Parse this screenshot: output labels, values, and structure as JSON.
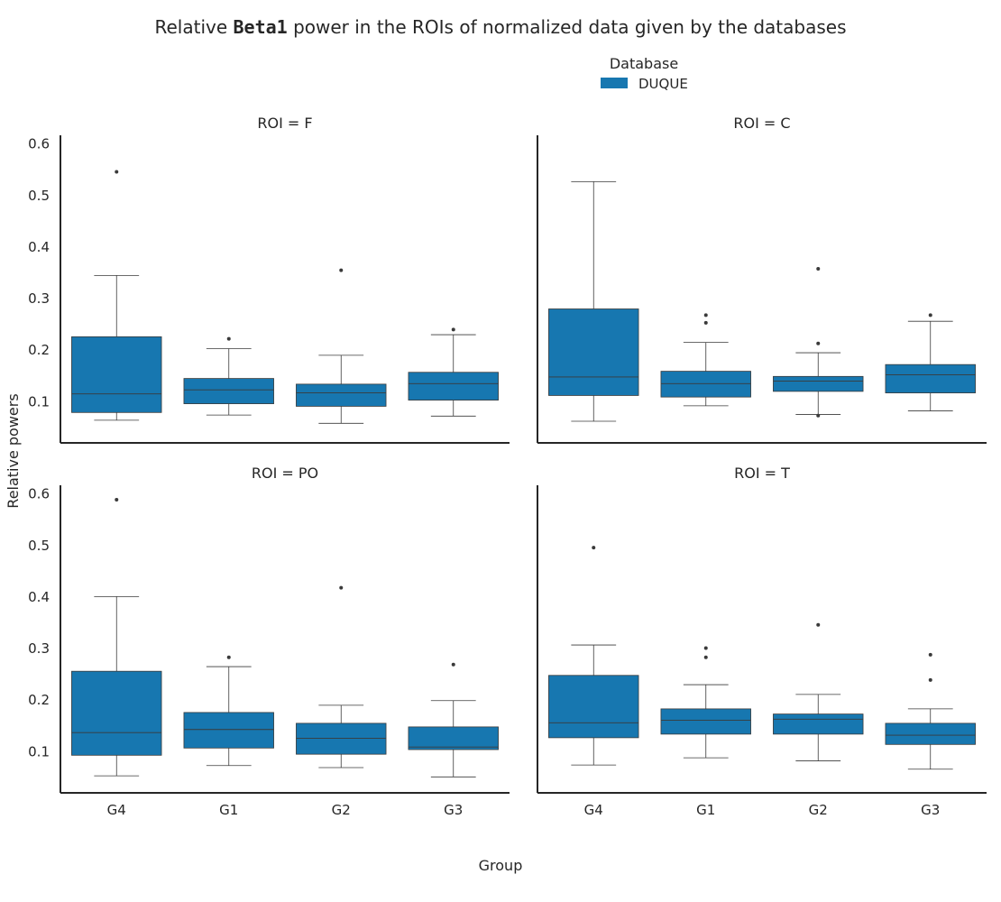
{
  "title_prefix": "Relative ",
  "title_bold": "Beta1",
  "title_suffix": " power in the ROIs of normalized data given by the databases",
  "legend": {
    "title": "Database",
    "entries": [
      {
        "label": "DUQUE",
        "color": "#1777b0"
      }
    ],
    "placement": "top-center"
  },
  "xlabel": "Group",
  "ylabel": "Relative powers",
  "colors": {
    "box": "#1777b0",
    "line": "#3a3a3a",
    "axis": "#262626"
  },
  "chart_data": [
    {
      "type": "boxplot",
      "title": "ROI = F",
      "categories": [
        "G4",
        "G1",
        "G2",
        "G3"
      ],
      "ylim": [
        0.02,
        0.617
      ],
      "yticks": [
        0.1,
        0.2,
        0.3,
        0.4,
        0.5,
        0.6
      ],
      "ytick_labels": [
        "0.1",
        "0.2",
        "0.3",
        "0.4",
        "0.5",
        "0.6"
      ],
      "grid": false,
      "series": [
        {
          "name": "DUQUE",
          "boxes": [
            {
              "whislo": 0.064,
              "q1": 0.079,
              "med": 0.115,
              "q3": 0.226,
              "whishi": 0.345,
              "fliers": [
                0.546
              ]
            },
            {
              "whislo": 0.074,
              "q1": 0.096,
              "med": 0.123,
              "q3": 0.145,
              "whishi": 0.203,
              "fliers": [
                0.222
              ]
            },
            {
              "whislo": 0.058,
              "q1": 0.091,
              "med": 0.117,
              "q3": 0.134,
              "whishi": 0.19,
              "fliers": [
                0.355
              ]
            },
            {
              "whislo": 0.072,
              "q1": 0.103,
              "med": 0.135,
              "q3": 0.157,
              "whishi": 0.23,
              "fliers": [
                0.24
              ]
            }
          ]
        }
      ]
    },
    {
      "type": "boxplot",
      "title": "ROI = C",
      "categories": [
        "G4",
        "G1",
        "G2",
        "G3"
      ],
      "ylim": [
        0.02,
        0.617
      ],
      "yticks": [
        0.1,
        0.2,
        0.3,
        0.4,
        0.5,
        0.6
      ],
      "ytick_labels": [],
      "grid": false,
      "series": [
        {
          "name": "DUQUE",
          "boxes": [
            {
              "whislo": 0.062,
              "q1": 0.112,
              "med": 0.148,
              "q3": 0.28,
              "whishi": 0.527,
              "fliers": []
            },
            {
              "whislo": 0.092,
              "q1": 0.109,
              "med": 0.135,
              "q3": 0.159,
              "whishi": 0.215,
              "fliers": [
                0.253,
                0.268
              ]
            },
            {
              "whislo": 0.075,
              "q1": 0.12,
              "med": 0.14,
              "q3": 0.149,
              "whishi": 0.195,
              "fliers": [
                0.073,
                0.213,
                0.358
              ]
            },
            {
              "whislo": 0.082,
              "q1": 0.117,
              "med": 0.152,
              "q3": 0.172,
              "whishi": 0.256,
              "fliers": [
                0.268
              ]
            }
          ]
        }
      ]
    },
    {
      "type": "boxplot",
      "title": "ROI = PO",
      "categories": [
        "G4",
        "G1",
        "G2",
        "G3"
      ],
      "ylim": [
        0.02,
        0.617
      ],
      "yticks": [
        0.1,
        0.2,
        0.3,
        0.4,
        0.5,
        0.6
      ],
      "ytick_labels": [
        "0.1",
        "0.2",
        "0.3",
        "0.4",
        "0.5",
        "0.6"
      ],
      "grid": false,
      "series": [
        {
          "name": "DUQUE",
          "boxes": [
            {
              "whislo": 0.053,
              "q1": 0.093,
              "med": 0.137,
              "q3": 0.256,
              "whishi": 0.401,
              "fliers": [
                0.589
              ]
            },
            {
              "whislo": 0.073,
              "q1": 0.107,
              "med": 0.143,
              "q3": 0.176,
              "whishi": 0.265,
              "fliers": [
                0.283
              ]
            },
            {
              "whislo": 0.069,
              "q1": 0.095,
              "med": 0.126,
              "q3": 0.155,
              "whishi": 0.19,
              "fliers": [
                0.418
              ]
            },
            {
              "whislo": 0.051,
              "q1": 0.104,
              "med": 0.109,
              "q3": 0.148,
              "whishi": 0.199,
              "fliers": [
                0.269
              ]
            }
          ]
        }
      ]
    },
    {
      "type": "boxplot",
      "title": "ROI = T",
      "categories": [
        "G4",
        "G1",
        "G2",
        "G3"
      ],
      "ylim": [
        0.02,
        0.617
      ],
      "yticks": [
        0.1,
        0.2,
        0.3,
        0.4,
        0.5,
        0.6
      ],
      "ytick_labels": [],
      "grid": false,
      "series": [
        {
          "name": "DUQUE",
          "boxes": [
            {
              "whislo": 0.074,
              "q1": 0.127,
              "med": 0.156,
              "q3": 0.248,
              "whishi": 0.307,
              "fliers": [
                0.496
              ]
            },
            {
              "whislo": 0.088,
              "q1": 0.134,
              "med": 0.161,
              "q3": 0.183,
              "whishi": 0.23,
              "fliers": [
                0.283,
                0.301
              ]
            },
            {
              "whislo": 0.082,
              "q1": 0.134,
              "med": 0.163,
              "q3": 0.173,
              "whishi": 0.211,
              "fliers": [
                0.346
              ]
            },
            {
              "whislo": 0.066,
              "q1": 0.114,
              "med": 0.132,
              "q3": 0.155,
              "whishi": 0.183,
              "fliers": [
                0.239,
                0.288
              ]
            }
          ]
        }
      ]
    }
  ]
}
